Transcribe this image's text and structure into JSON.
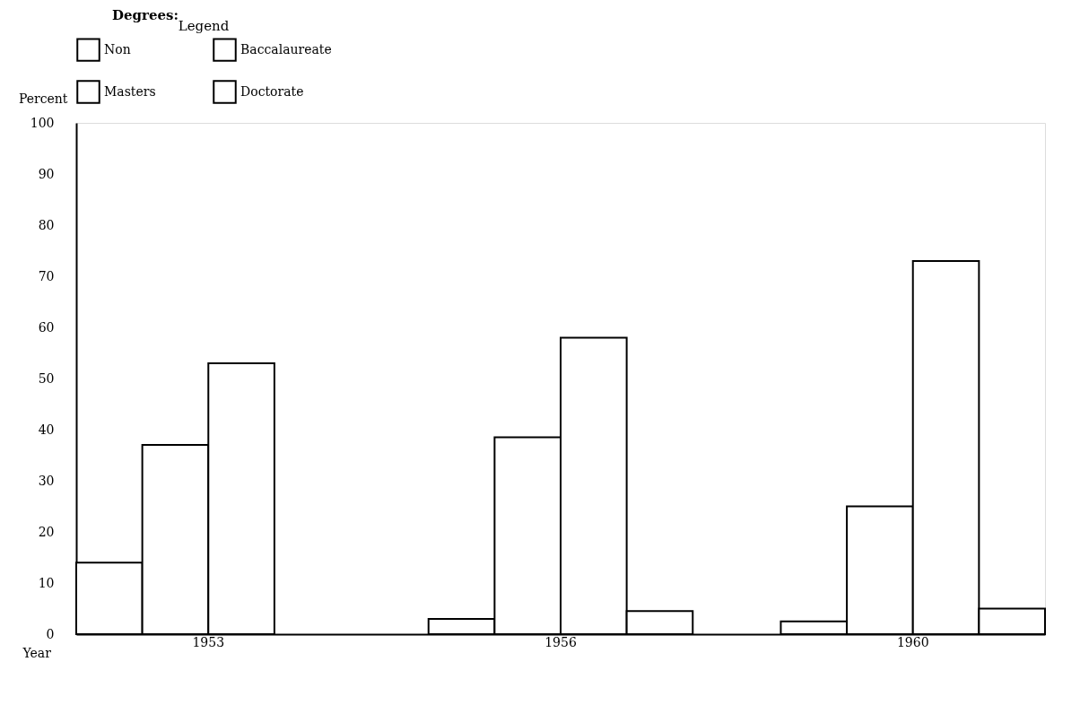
{
  "chart_data": {
    "type": "bar",
    "categories": [
      "1953",
      "1956",
      "1960"
    ],
    "series": [
      {
        "name": "Non",
        "color": "#ffffff",
        "values": [
          14,
          3,
          2.5
        ]
      },
      {
        "name": "Baccalaureate",
        "color": "#ffffff",
        "values": [
          37,
          38.5,
          25
        ]
      },
      {
        "name": "Masters",
        "color": "#ffffff",
        "values": [
          53,
          58,
          73
        ]
      },
      {
        "name": "Doctorate",
        "color": "#ffffff",
        "values": [
          null,
          4.5,
          5
        ]
      }
    ],
    "xlabel": "Year",
    "ylabel": "Percent",
    "legend_title": "Legend",
    "annotations": [
      "Degrees:"
    ],
    "ylim": [
      0,
      100
    ],
    "yticks": [
      0,
      10,
      20,
      30,
      40,
      50,
      60,
      70,
      80,
      90,
      100
    ],
    "grid": false,
    "legend": "top"
  }
}
